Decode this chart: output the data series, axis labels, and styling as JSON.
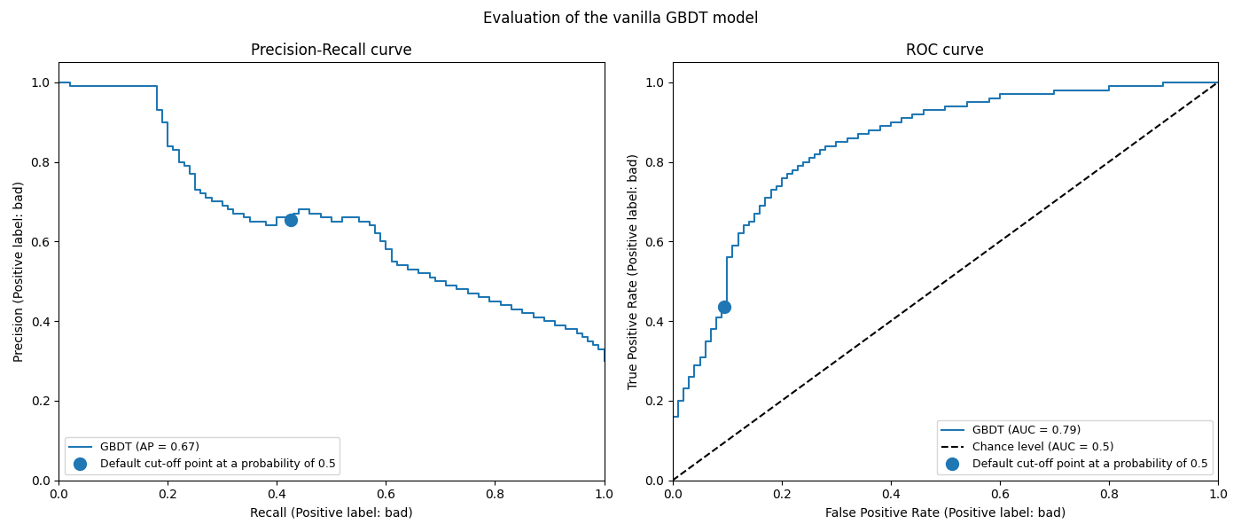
{
  "title": "Evaluation of the vanilla GBDT model",
  "pr_title": "Precision-Recall curve",
  "roc_title": "ROC curve",
  "pr_xlabel": "Recall (Positive label: bad)",
  "pr_ylabel": "Precision (Positive label: bad)",
  "roc_xlabel": "False Positive Rate (Positive label: bad)",
  "roc_ylabel": "True Positive Rate (Positive label: bad)",
  "pr_legend_gbdt": "GBDT (AP = 0.67)",
  "pr_legend_cutoff": "Default cut-off point at a probability of 0.5",
  "roc_legend_gbdt": "GBDT (AUC = 0.79)",
  "roc_legend_chance": "Chance level (AUC = 0.5)",
  "roc_legend_cutoff": "Default cut-off point at a probability of 0.5",
  "curve_color": "#1f77b4",
  "marker_color": "#1f77b4",
  "chance_color": "black",
  "pr_cutoff_recall": 0.425,
  "pr_cutoff_precision": 0.655,
  "roc_cutoff_fpr": 0.095,
  "roc_cutoff_tpr": 0.435,
  "figsize": [
    14,
    6
  ],
  "dpi": 100,
  "pr_curve_recalls": [
    0.0,
    0.0,
    0.02,
    0.02,
    0.18,
    0.18,
    0.19,
    0.19,
    0.2,
    0.2,
    0.21,
    0.21,
    0.22,
    0.22,
    0.23,
    0.23,
    0.24,
    0.24,
    0.25,
    0.25,
    0.26,
    0.26,
    0.27,
    0.27,
    0.28,
    0.28,
    0.29,
    0.29,
    0.3,
    0.3,
    0.31,
    0.31,
    0.32,
    0.32,
    0.33,
    0.33,
    0.34,
    0.34,
    0.35,
    0.35,
    0.36,
    0.36,
    0.37,
    0.37,
    0.38,
    0.38,
    0.39,
    0.39,
    0.4,
    0.4,
    0.41,
    0.41,
    0.42,
    0.42,
    0.43,
    0.43,
    0.44,
    0.44,
    0.45,
    0.45,
    0.46,
    0.46,
    0.47,
    0.47,
    0.48,
    0.48,
    0.49,
    0.49,
    0.5,
    0.5,
    0.51,
    0.51,
    0.52,
    0.52,
    0.53,
    0.53,
    0.55,
    0.55,
    0.57,
    0.57,
    0.58,
    0.58,
    0.59,
    0.59,
    0.6,
    0.6,
    0.61,
    0.61,
    0.62,
    0.62,
    0.63,
    0.63,
    0.64,
    0.64,
    0.65,
    0.65,
    0.66,
    0.66,
    0.67,
    0.67,
    0.68,
    0.68,
    0.69,
    0.69,
    0.7,
    0.7,
    0.71,
    0.71,
    0.72,
    0.72,
    0.73,
    0.73,
    0.74,
    0.74,
    0.75,
    0.75,
    0.76,
    0.76,
    0.77,
    0.77,
    0.78,
    0.78,
    0.79,
    0.79,
    0.8,
    0.8,
    0.81,
    0.81,
    0.82,
    0.82,
    0.83,
    0.83,
    0.84,
    0.84,
    0.85,
    0.85,
    0.86,
    0.86,
    0.87,
    0.87,
    0.88,
    0.88,
    0.89,
    0.89,
    0.9,
    0.9,
    0.91,
    0.91,
    0.92,
    0.92,
    0.93,
    0.93,
    0.94,
    0.94,
    0.95,
    0.95,
    0.96,
    0.96,
    0.97,
    0.97,
    0.98,
    0.98,
    0.99,
    0.99,
    1.0,
    1.0
  ],
  "pr_curve_precisions": [
    1.0,
    1.0,
    1.0,
    0.99,
    0.99,
    0.93,
    0.93,
    0.9,
    0.9,
    0.84,
    0.84,
    0.83,
    0.83,
    0.8,
    0.8,
    0.79,
    0.79,
    0.77,
    0.77,
    0.73,
    0.73,
    0.72,
    0.72,
    0.71,
    0.71,
    0.7,
    0.7,
    0.7,
    0.7,
    0.69,
    0.69,
    0.68,
    0.68,
    0.67,
    0.67,
    0.67,
    0.67,
    0.66,
    0.66,
    0.65,
    0.65,
    0.65,
    0.65,
    0.65,
    0.65,
    0.64,
    0.64,
    0.64,
    0.64,
    0.66,
    0.66,
    0.66,
    0.66,
    0.66,
    0.66,
    0.67,
    0.67,
    0.68,
    0.68,
    0.68,
    0.68,
    0.67,
    0.67,
    0.67,
    0.67,
    0.66,
    0.66,
    0.66,
    0.66,
    0.65,
    0.65,
    0.65,
    0.65,
    0.66,
    0.66,
    0.66,
    0.66,
    0.65,
    0.65,
    0.64,
    0.64,
    0.62,
    0.62,
    0.6,
    0.6,
    0.58,
    0.58,
    0.55,
    0.55,
    0.54,
    0.54,
    0.54,
    0.54,
    0.53,
    0.53,
    0.53,
    0.53,
    0.52,
    0.52,
    0.52,
    0.52,
    0.51,
    0.51,
    0.5,
    0.5,
    0.5,
    0.5,
    0.49,
    0.49,
    0.49,
    0.49,
    0.48,
    0.48,
    0.48,
    0.48,
    0.47,
    0.47,
    0.47,
    0.47,
    0.46,
    0.46,
    0.46,
    0.46,
    0.45,
    0.45,
    0.45,
    0.45,
    0.44,
    0.44,
    0.44,
    0.44,
    0.43,
    0.43,
    0.43,
    0.43,
    0.42,
    0.42,
    0.42,
    0.42,
    0.41,
    0.41,
    0.41,
    0.41,
    0.4,
    0.4,
    0.4,
    0.4,
    0.39,
    0.39,
    0.39,
    0.39,
    0.38,
    0.38,
    0.38,
    0.38,
    0.37,
    0.37,
    0.36,
    0.36,
    0.35,
    0.35,
    0.34,
    0.34,
    0.33,
    0.33,
    0.3
  ],
  "roc_curve_fpr": [
    0.0,
    0.0,
    0.01,
    0.01,
    0.02,
    0.02,
    0.03,
    0.03,
    0.04,
    0.04,
    0.05,
    0.05,
    0.06,
    0.06,
    0.07,
    0.07,
    0.08,
    0.08,
    0.09,
    0.09,
    0.1,
    0.1,
    0.11,
    0.11,
    0.12,
    0.12,
    0.13,
    0.13,
    0.14,
    0.14,
    0.15,
    0.15,
    0.16,
    0.16,
    0.17,
    0.17,
    0.18,
    0.18,
    0.19,
    0.19,
    0.2,
    0.2,
    0.21,
    0.21,
    0.22,
    0.22,
    0.23,
    0.23,
    0.24,
    0.24,
    0.25,
    0.25,
    0.26,
    0.26,
    0.27,
    0.27,
    0.28,
    0.28,
    0.3,
    0.3,
    0.32,
    0.32,
    0.34,
    0.34,
    0.36,
    0.36,
    0.38,
    0.38,
    0.4,
    0.4,
    0.42,
    0.42,
    0.44,
    0.44,
    0.46,
    0.46,
    0.48,
    0.48,
    0.5,
    0.5,
    0.52,
    0.52,
    0.54,
    0.54,
    0.56,
    0.56,
    0.58,
    0.58,
    0.6,
    0.6,
    0.65,
    0.65,
    0.7,
    0.7,
    0.75,
    0.75,
    0.8,
    0.8,
    0.85,
    0.85,
    0.9,
    0.9,
    0.95,
    0.95,
    1.0
  ],
  "roc_curve_tpr": [
    0.0,
    0.16,
    0.16,
    0.2,
    0.2,
    0.23,
    0.23,
    0.26,
    0.26,
    0.29,
    0.29,
    0.31,
    0.31,
    0.35,
    0.35,
    0.38,
    0.38,
    0.41,
    0.41,
    0.43,
    0.43,
    0.56,
    0.56,
    0.59,
    0.59,
    0.62,
    0.62,
    0.64,
    0.64,
    0.65,
    0.65,
    0.67,
    0.67,
    0.69,
    0.69,
    0.71,
    0.71,
    0.73,
    0.73,
    0.74,
    0.74,
    0.76,
    0.76,
    0.77,
    0.77,
    0.78,
    0.78,
    0.79,
    0.79,
    0.8,
    0.8,
    0.81,
    0.81,
    0.82,
    0.82,
    0.83,
    0.83,
    0.84,
    0.84,
    0.85,
    0.85,
    0.86,
    0.86,
    0.87,
    0.87,
    0.88,
    0.88,
    0.89,
    0.89,
    0.9,
    0.9,
    0.91,
    0.91,
    0.92,
    0.92,
    0.93,
    0.93,
    0.93,
    0.93,
    0.94,
    0.94,
    0.94,
    0.94,
    0.95,
    0.95,
    0.95,
    0.95,
    0.96,
    0.96,
    0.97,
    0.97,
    0.97,
    0.97,
    0.98,
    0.98,
    0.98,
    0.98,
    0.99,
    0.99,
    0.99,
    0.99,
    1.0,
    1.0,
    1.0,
    1.0
  ]
}
